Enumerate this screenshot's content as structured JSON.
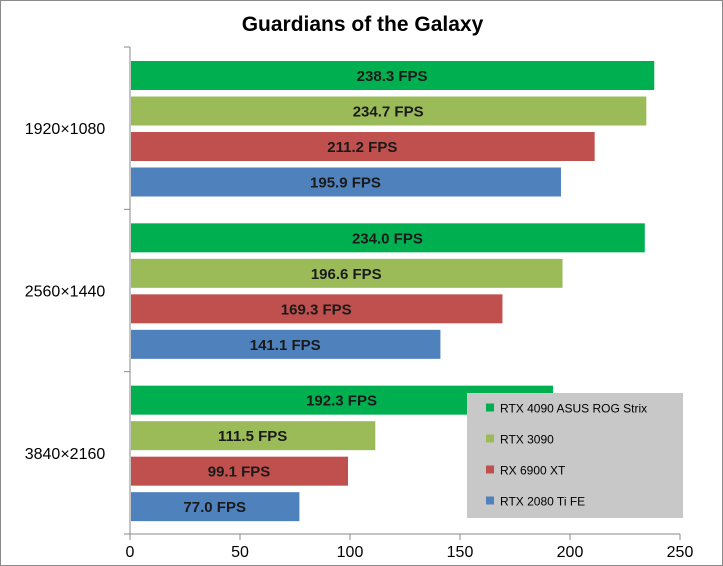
{
  "chart_data": {
    "type": "bar",
    "orientation": "horizontal",
    "title": "Guardians of the Galaxy",
    "categories": [
      "1920×1080",
      "2560×1440",
      "3840×2160"
    ],
    "series": [
      {
        "name": "RTX 4090 ASUS ROG Strix",
        "color": "#00b050",
        "values": [
          238.3,
          234.0,
          192.3
        ],
        "labels": [
          "238.3 FPS",
          "234.0 FPS",
          "192.3 FPS"
        ]
      },
      {
        "name": "RTX 3090",
        "color": "#9bbb59",
        "values": [
          234.7,
          196.6,
          111.5
        ],
        "labels": [
          "234.7 FPS",
          "196.6 FPS",
          "111.5 FPS"
        ]
      },
      {
        "name": "RX 6900 XT",
        "color": "#c0504d",
        "values": [
          211.2,
          169.3,
          99.1
        ],
        "labels": [
          "211.2 FPS",
          "169.3 FPS",
          "99.1 FPS"
        ]
      },
      {
        "name": "RTX 2080 Ti FE",
        "color": "#4f81bd",
        "values": [
          195.9,
          141.1,
          77.0
        ],
        "labels": [
          "195.9 FPS",
          "141.1 FPS",
          "77.0 FPS"
        ]
      }
    ],
    "xlim": [
      0,
      250
    ],
    "xticks": [
      "0",
      "50",
      "100",
      "150",
      "200",
      "250"
    ],
    "grid": false,
    "legend_position": "bottom-right",
    "legend_background": "#c8c8c8"
  }
}
